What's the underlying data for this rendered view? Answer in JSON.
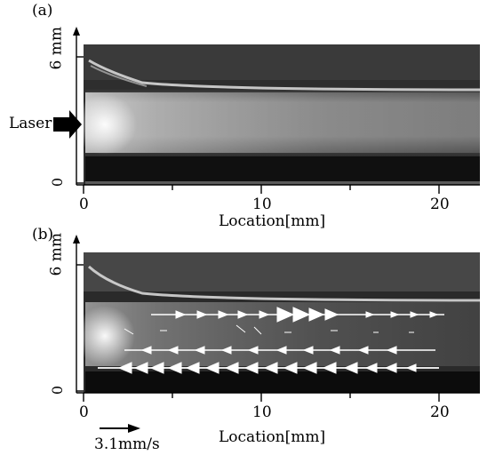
{
  "figure": {
    "panels": [
      {
        "id": "a",
        "label": "(a)",
        "y_axis_label": "6 mm",
        "y_zero_label": "0",
        "x_ticks": [
          "0",
          "10",
          "20"
        ],
        "x_axis_label": "Location[mm]",
        "laser_label": "Laser",
        "image_description_colors": {
          "background": "#2b2b2b",
          "beam": "#d8d8d8",
          "dark_band": "#0e0e0e"
        }
      },
      {
        "id": "b",
        "label": "(b)",
        "y_axis_label": "6 mm",
        "y_zero_label": "0",
        "x_ticks": [
          "0",
          "10",
          "20"
        ],
        "x_axis_label": "Location[mm]",
        "scale_label": "3.1mm/s"
      }
    ]
  }
}
